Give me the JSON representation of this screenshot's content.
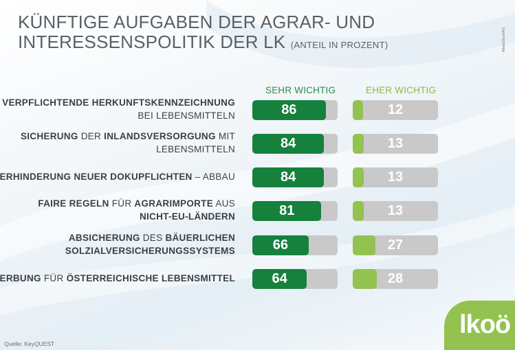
{
  "title": {
    "line1": "KÜNFTIGE AUFGABEN DER AGRAR- UND",
    "line2": "INTERESSENSPOLITIK DER LK",
    "subtitle": "(ANTEIL IN PROZENT)"
  },
  "credit": "AdobeStock/#91774905",
  "source": "Quelle: KeyQUEST",
  "logo": "lkoö",
  "colors": {
    "sehr_wichtig": "#16803d",
    "eher_wichtig": "#93c250",
    "track": "#c9c9ca"
  },
  "chart_data": {
    "type": "bar",
    "orientation": "horizontal",
    "title": "KÜNFTIGE AUFGABEN DER AGRAR- UND INTERESSENSPOLITIK DER LK",
    "subtitle": "(ANTEIL IN PROZENT)",
    "xlim": [
      0,
      100
    ],
    "legend": "top",
    "categories": [
      {
        "lines": [
          [
            {
              "t": "VERPFLICHTENDE HERKUNFTSKENNZEICHNUNG",
              "b": true
            }
          ],
          [
            {
              "t": "BEI LEBENSMITTELN",
              "b": false
            }
          ]
        ]
      },
      {
        "lines": [
          [
            {
              "t": "SICHERUNG",
              "b": true
            },
            {
              "t": " DER ",
              "b": false
            },
            {
              "t": "INLANDSVERSORGUNG",
              "b": true
            },
            {
              "t": " MIT",
              "b": false
            }
          ],
          [
            {
              "t": "LEBENSMITTELN",
              "b": false
            }
          ]
        ]
      },
      {
        "lines": [
          [
            {
              "t": "VERHINDERUNG NEUER DOKUPFLICHTEN",
              "b": true
            },
            {
              "t": " – ABBAU",
              "b": false
            }
          ]
        ]
      },
      {
        "lines": [
          [
            {
              "t": "FAIRE REGELN",
              "b": true
            },
            {
              "t": " FÜR ",
              "b": false
            },
            {
              "t": "AGRARIMPORTE",
              "b": true
            },
            {
              "t": " AUS",
              "b": false
            }
          ],
          [
            {
              "t": "NICHT-EU-LÄNDERN",
              "b": true
            }
          ]
        ]
      },
      {
        "lines": [
          [
            {
              "t": "ABSICHERUNG",
              "b": true
            },
            {
              "t": " DES ",
              "b": false
            },
            {
              "t": "BÄUERLICHEN",
              "b": true
            }
          ],
          [
            {
              "t": "SOLZIALVERSICHERUNGSSYSTEMS",
              "b": true
            }
          ]
        ]
      },
      {
        "lines": [
          [
            {
              "t": "WERBUNG",
              "b": true
            },
            {
              "t": " FÜR ",
              "b": false
            },
            {
              "t": "ÖSTERREICHISCHE LEBENSMITTEL",
              "b": true
            }
          ]
        ]
      }
    ],
    "series": [
      {
        "name": "SEHR WICHTIG",
        "values": [
          86,
          84,
          84,
          81,
          66,
          64
        ]
      },
      {
        "name": "EHER WICHTIG",
        "values": [
          12,
          13,
          13,
          13,
          27,
          28
        ]
      }
    ]
  }
}
